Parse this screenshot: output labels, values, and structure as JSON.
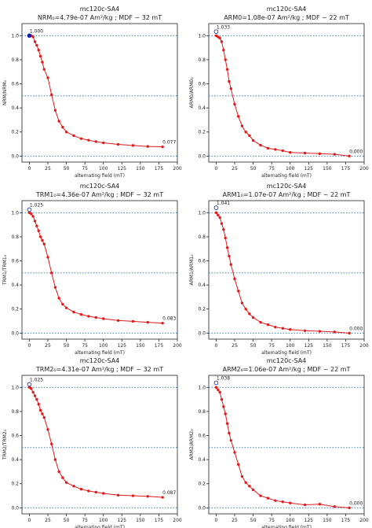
{
  "chart_data": [
    {
      "type": "line",
      "title_line1": "mc120c-SA4",
      "title_line2": "NRM₀=4.79e-07 Am²/kg ; MDF ~ 32 mT",
      "xlabel": "alternating field (mT)",
      "ylabel": "NRM/NRM₀",
      "xlim": [
        -10,
        200
      ],
      "ylim": [
        -0.05,
        1.1
      ],
      "xticks": [
        0,
        25,
        50,
        75,
        100,
        125,
        150,
        175,
        200
      ],
      "yticks": [
        0.0,
        0.2,
        0.4,
        0.6,
        0.8,
        1.0
      ],
      "hlines": [
        1.0,
        0.5,
        0.0
      ],
      "start_marker": "filled",
      "start_value": 1.0,
      "start_label": "1.000",
      "end_label": "0.077",
      "series": [
        {
          "x": [
            0,
            2.5,
            5,
            7.5,
            10,
            12.5,
            15,
            17.5,
            20,
            25,
            30,
            35,
            40,
            45,
            50,
            60,
            70,
            80,
            90,
            100,
            120,
            140,
            160,
            180
          ],
          "y": [
            1.0,
            1.0,
            0.99,
            0.95,
            0.92,
            0.88,
            0.83,
            0.78,
            0.72,
            0.65,
            0.51,
            0.38,
            0.29,
            0.24,
            0.2,
            0.17,
            0.145,
            0.132,
            0.12,
            0.11,
            0.097,
            0.088,
            0.08,
            0.077
          ]
        }
      ]
    },
    {
      "type": "line",
      "title_line1": "mc120c-SA4",
      "title_line2": "ARM0=1.08e-07 Am²/kg ; MDF ~ 22 mT",
      "xlabel": "alternating field (mT)",
      "ylabel": "ARM0/ARM0₀",
      "xlim": [
        -10,
        200
      ],
      "ylim": [
        -0.05,
        1.1
      ],
      "xticks": [
        0,
        25,
        50,
        75,
        100,
        125,
        150,
        175,
        200
      ],
      "yticks": [
        0.0,
        0.2,
        0.4,
        0.6,
        0.8,
        1.0
      ],
      "hlines": [
        1.0,
        0.5,
        0.0
      ],
      "start_marker": "open",
      "start_value": 1.033,
      "start_label": "1.033",
      "end_label": "0.000",
      "series": [
        {
          "x": [
            0,
            2.5,
            5,
            7.5,
            10,
            12.5,
            15,
            17.5,
            20,
            25,
            30,
            35,
            40,
            45,
            50,
            60,
            70,
            80,
            90,
            100,
            120,
            140,
            160,
            180
          ],
          "y": [
            1.0,
            0.99,
            0.98,
            0.95,
            0.88,
            0.8,
            0.72,
            0.62,
            0.56,
            0.43,
            0.33,
            0.25,
            0.2,
            0.17,
            0.13,
            0.09,
            0.065,
            0.055,
            0.045,
            0.03,
            0.025,
            0.02,
            0.015,
            0.0
          ]
        }
      ]
    },
    {
      "type": "line",
      "title_line1": "mc120c-SA4",
      "title_line2": "TRM1₀=4.36e-07 Am²/kg ; MDF ~ 32 mT",
      "xlabel": "alternating field (mT)",
      "ylabel": "TRM1/TRM1₀",
      "xlim": [
        -10,
        200
      ],
      "ylim": [
        -0.05,
        1.1
      ],
      "xticks": [
        0,
        25,
        50,
        75,
        100,
        125,
        150,
        175,
        200
      ],
      "yticks": [
        0.0,
        0.2,
        0.4,
        0.6,
        0.8,
        1.0
      ],
      "hlines": [
        1.0,
        0.5,
        0.0
      ],
      "start_marker": "open",
      "start_value": 1.025,
      "start_label": "1.025",
      "end_label": "0.083",
      "series": [
        {
          "x": [
            0,
            2.5,
            5,
            7.5,
            10,
            12.5,
            15,
            17.5,
            20,
            25,
            30,
            35,
            40,
            45,
            50,
            60,
            70,
            80,
            90,
            100,
            120,
            140,
            160,
            180
          ],
          "y": [
            1.0,
            0.99,
            0.97,
            0.93,
            0.89,
            0.85,
            0.8,
            0.77,
            0.74,
            0.63,
            0.5,
            0.38,
            0.29,
            0.24,
            0.21,
            0.175,
            0.155,
            0.14,
            0.13,
            0.12,
            0.105,
            0.098,
            0.09,
            0.083
          ]
        }
      ]
    },
    {
      "type": "line",
      "title_line1": "mc120c-SA4",
      "title_line2": "ARM1₀=1.07e-07 Am²/kg ; MDF ~ 22 mT",
      "xlabel": "alternating field (mT)",
      "ylabel": "ARM1/ARM1₀",
      "xlim": [
        -10,
        200
      ],
      "ylim": [
        -0.05,
        1.1
      ],
      "xticks": [
        0,
        25,
        50,
        75,
        100,
        125,
        150,
        175,
        200
      ],
      "yticks": [
        0.0,
        0.2,
        0.4,
        0.6,
        0.8,
        1.0
      ],
      "hlines": [
        1.0,
        0.5,
        0.0
      ],
      "start_marker": "open",
      "start_value": 1.041,
      "start_label": "1.041",
      "end_label": "0.000",
      "series": [
        {
          "x": [
            0,
            2.5,
            5,
            7.5,
            10,
            12.5,
            15,
            17.5,
            20,
            25,
            30,
            35,
            40,
            45,
            50,
            60,
            70,
            80,
            90,
            100,
            120,
            140,
            160,
            180
          ],
          "y": [
            1.0,
            0.98,
            0.96,
            0.91,
            0.86,
            0.79,
            0.71,
            0.64,
            0.57,
            0.45,
            0.35,
            0.25,
            0.2,
            0.16,
            0.13,
            0.09,
            0.07,
            0.05,
            0.04,
            0.03,
            0.02,
            0.015,
            0.01,
            0.0
          ]
        }
      ]
    },
    {
      "type": "line",
      "title_line1": "mc120c-SA4",
      "title_line2": "TRM2₀=4.31e-07 Am²/kg ; MDF ~ 32 mT",
      "xlabel": "alternating field (mT)",
      "ylabel": "TRM2/TRM2₀",
      "xlim": [
        -10,
        200
      ],
      "ylim": [
        -0.05,
        1.1
      ],
      "xticks": [
        0,
        25,
        50,
        75,
        100,
        125,
        150,
        175,
        200
      ],
      "yticks": [
        0.0,
        0.2,
        0.4,
        0.6,
        0.8,
        1.0
      ],
      "hlines": [
        1.0,
        0.5,
        0.0
      ],
      "start_marker": "open",
      "start_value": 1.025,
      "start_label": "1.025",
      "end_label": "0.087",
      "series": [
        {
          "x": [
            0,
            2.5,
            5,
            7.5,
            10,
            12.5,
            15,
            17.5,
            20,
            25,
            30,
            35,
            40,
            45,
            50,
            60,
            70,
            80,
            90,
            100,
            120,
            140,
            160,
            180
          ],
          "y": [
            1.0,
            0.99,
            0.96,
            0.93,
            0.9,
            0.86,
            0.81,
            0.78,
            0.75,
            0.65,
            0.53,
            0.4,
            0.3,
            0.25,
            0.21,
            0.18,
            0.155,
            0.14,
            0.13,
            0.12,
            0.105,
            0.1,
            0.095,
            0.087
          ]
        }
      ]
    },
    {
      "type": "line",
      "title_line1": "mc120c-SA4",
      "title_line2": "ARM2₀=1.06e-07 Am²/kg ; MDF ~ 22 mT",
      "xlabel": "alternating field (mT)",
      "ylabel": "ARM2/ARM2₀",
      "xlim": [
        -10,
        200
      ],
      "ylim": [
        -0.05,
        1.1
      ],
      "xticks": [
        0,
        25,
        50,
        75,
        100,
        125,
        150,
        175,
        200
      ],
      "yticks": [
        0.0,
        0.2,
        0.4,
        0.6,
        0.8,
        1.0
      ],
      "hlines": [
        1.0,
        0.5,
        0.0
      ],
      "start_marker": "open",
      "start_value": 1.038,
      "start_label": "1.038",
      "end_label": "0.000",
      "series": [
        {
          "x": [
            0,
            2.5,
            5,
            7.5,
            10,
            12.5,
            15,
            17.5,
            20,
            25,
            30,
            35,
            40,
            45,
            50,
            60,
            70,
            80,
            90,
            100,
            120,
            140,
            160,
            180
          ],
          "y": [
            1.0,
            0.98,
            0.96,
            0.9,
            0.84,
            0.78,
            0.7,
            0.62,
            0.56,
            0.46,
            0.36,
            0.26,
            0.21,
            0.18,
            0.15,
            0.1,
            0.08,
            0.06,
            0.05,
            0.04,
            0.025,
            0.03,
            0.01,
            0.0
          ]
        }
      ]
    }
  ],
  "colors": {
    "line": "#e31a1c",
    "marker_start": "#0a1fb0",
    "hline": "#1f77b4",
    "axis": "#222222"
  }
}
